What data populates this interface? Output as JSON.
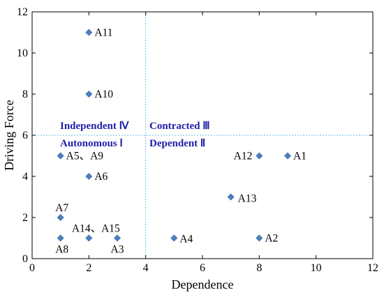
{
  "chart_data": {
    "type": "scatter",
    "title": "",
    "xlabel": "Dependence",
    "ylabel": "Driving Force",
    "xlim": [
      0,
      12
    ],
    "ylim": [
      0,
      12
    ],
    "xticks": [
      "0",
      "2",
      "4",
      "6",
      "8",
      "10",
      "12"
    ],
    "yticks": [
      "0",
      "2",
      "4",
      "6",
      "8",
      "10",
      "12"
    ],
    "grid": false,
    "marker": "diamond",
    "marker_color": "#4a7fbe",
    "divider_lines": {
      "x": 4,
      "y": 6,
      "style": "dotted",
      "color": "#5fc1e6"
    },
    "points": [
      {
        "label": "A11",
        "x": 2,
        "y": 11
      },
      {
        "label": "A10",
        "x": 2,
        "y": 8
      },
      {
        "label": "A5、A9",
        "x": 1,
        "y": 5
      },
      {
        "label": "A6",
        "x": 2,
        "y": 4
      },
      {
        "label": "A7",
        "x": 1,
        "y": 2
      },
      {
        "label": "A14、A15",
        "x": 2,
        "y": 1
      },
      {
        "label": "A8",
        "x": 1,
        "y": 1
      },
      {
        "label": "A3",
        "x": 3,
        "y": 1
      },
      {
        "label": "A4",
        "x": 5,
        "y": 1
      },
      {
        "label": "A13",
        "x": 7,
        "y": 3
      },
      {
        "label": "A12",
        "x": 8,
        "y": 5
      },
      {
        "label": "A1",
        "x": 9,
        "y": 5
      },
      {
        "label": "A2",
        "x": 8,
        "y": 1
      }
    ],
    "quadrants": [
      {
        "label": "Independent Ⅳ",
        "color": "#1f1fa8"
      },
      {
        "label": "Contracted Ⅲ",
        "color": "#1f1fa8"
      },
      {
        "label": "Autonomous Ⅰ",
        "color": "#1f1fa8"
      },
      {
        "label": "Dependent Ⅱ",
        "color": "#1f1fa8"
      }
    ]
  }
}
